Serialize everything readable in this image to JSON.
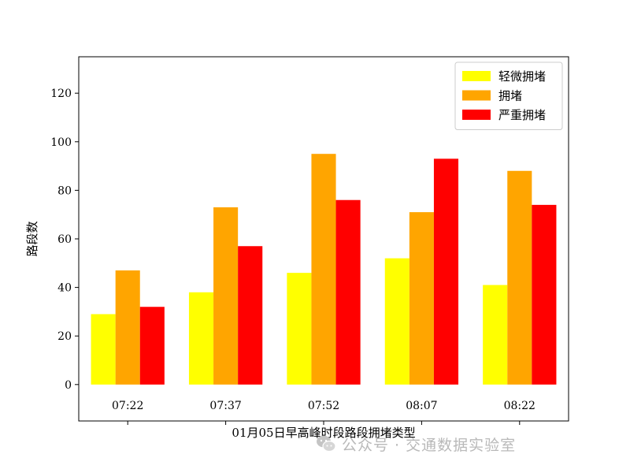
{
  "chart_data": {
    "type": "bar",
    "title": "",
    "xlabel": "01月05日早高峰时段路段拥堵类型",
    "ylabel": "路段数",
    "categories": [
      "07:22",
      "07:37",
      "07:52",
      "08:07",
      "08:22"
    ],
    "series": [
      {
        "name": "轻微拥堵",
        "color": "#ffff00",
        "values": [
          29,
          38,
          46,
          52,
          41
        ]
      },
      {
        "name": "拥堵",
        "color": "#ffa500",
        "values": [
          47,
          73,
          95,
          71,
          88
        ]
      },
      {
        "name": "严重拥堵",
        "color": "#ff0000",
        "values": [
          32,
          57,
          76,
          93,
          74
        ]
      }
    ],
    "ylim": [
      -15,
      135
    ],
    "yticks": [
      0,
      20,
      40,
      60,
      80,
      100,
      120
    ],
    "grid": false,
    "legend_position": "top-right"
  },
  "watermark": {
    "icon": "wechat-icon",
    "text": "公众号 · 交通数据实验室"
  }
}
